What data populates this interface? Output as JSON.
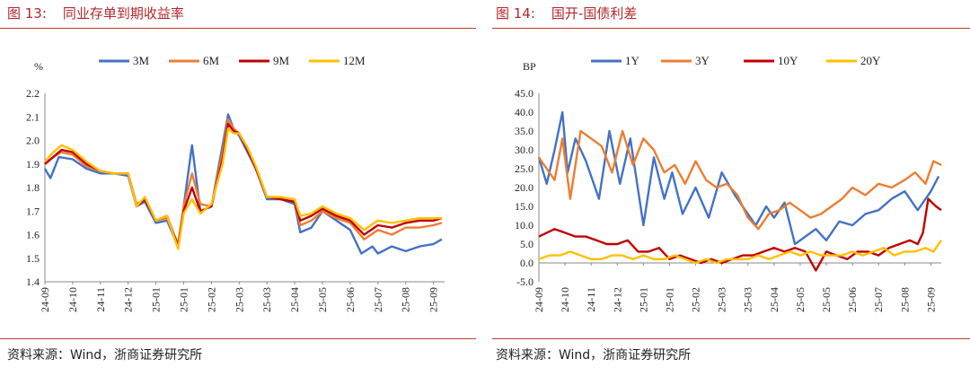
{
  "left": {
    "title": {
      "number": "图 13:",
      "text": "同业存单到期收益率"
    },
    "source": "资料来源：Wind，浙商证券研究所"
  },
  "right": {
    "title": {
      "number": "图 14:",
      "text": "国开-国债利差"
    },
    "source": "资料来源：Wind，浙商证券研究所"
  },
  "colors": {
    "title": "#b2272b",
    "rule": "#c0392b",
    "blue": "#4472c4",
    "orange": "#ed7d31",
    "red": "#c00000",
    "yellow": "#ffc000"
  },
  "chart_data": [
    {
      "type": "line",
      "title": "同业存单到期收益率",
      "ylabel": "%",
      "ylim": [
        1.4,
        2.2
      ],
      "yticks": [
        "1.4",
        "1.5",
        "1.6",
        "1.7",
        "1.8",
        "1.9",
        "2.0",
        "2.1",
        "2.2"
      ],
      "categories": [
        "24-09",
        "24-10",
        "24-11",
        "24-12",
        "25-01",
        "25-01",
        "25-02",
        "25-03",
        "25-03",
        "25-04",
        "25-05",
        "25-06",
        "25-07",
        "25-08",
        "25-09"
      ],
      "legend_position": "top",
      "series": [
        {
          "name": "3M",
          "color": "#4472c4",
          "x": [
            0,
            0.2,
            0.5,
            1,
            1.5,
            2,
            2.5,
            3,
            3.3,
            3.6,
            4,
            4.4,
            4.8,
            5,
            5.3,
            5.6,
            6,
            6.4,
            6.6,
            6.8,
            7,
            7.3,
            7.6,
            8,
            8.5,
            9,
            9.2,
            9.6,
            10,
            10.5,
            11,
            11.4,
            11.8,
            12,
            12.5,
            13,
            13.5,
            14,
            14.3
          ],
          "values": [
            1.88,
            1.84,
            1.93,
            1.92,
            1.88,
            1.86,
            1.86,
            1.85,
            1.72,
            1.74,
            1.65,
            1.66,
            1.55,
            1.72,
            1.98,
            1.7,
            1.72,
            1.98,
            2.11,
            2.05,
            2.02,
            1.95,
            1.88,
            1.75,
            1.75,
            1.73,
            1.61,
            1.63,
            1.7,
            1.66,
            1.62,
            1.52,
            1.55,
            1.52,
            1.55,
            1.53,
            1.55,
            1.56,
            1.58
          ]
        },
        {
          "name": "6M",
          "color": "#ed7d31",
          "x": [
            0,
            0.3,
            0.6,
            1,
            1.5,
            2,
            2.5,
            3,
            3.3,
            3.6,
            4,
            4.4,
            4.8,
            5,
            5.3,
            5.6,
            6,
            6.4,
            6.6,
            6.8,
            7,
            7.3,
            7.6,
            8,
            8.5,
            9,
            9.2,
            9.6,
            10,
            10.5,
            11,
            11.5,
            12,
            12.5,
            13,
            13.5,
            14,
            14.3
          ],
          "values": [
            1.9,
            1.93,
            1.95,
            1.94,
            1.89,
            1.87,
            1.86,
            1.86,
            1.73,
            1.75,
            1.66,
            1.67,
            1.56,
            1.72,
            1.86,
            1.73,
            1.72,
            1.95,
            2.09,
            2.05,
            2.03,
            1.96,
            1.88,
            1.76,
            1.75,
            1.74,
            1.64,
            1.66,
            1.7,
            1.67,
            1.65,
            1.58,
            1.62,
            1.6,
            1.63,
            1.63,
            1.64,
            1.65
          ]
        },
        {
          "name": "9M",
          "color": "#c00000",
          "x": [
            0,
            0.3,
            0.6,
            1,
            1.5,
            2,
            2.5,
            3,
            3.3,
            3.6,
            4,
            4.4,
            4.8,
            5,
            5.3,
            5.6,
            6,
            6.4,
            6.6,
            6.8,
            7,
            7.3,
            7.6,
            8,
            8.5,
            9,
            9.2,
            9.6,
            10,
            10.5,
            11,
            11.5,
            12,
            12.5,
            13,
            13.5,
            14,
            14.3
          ],
          "values": [
            1.9,
            1.93,
            1.96,
            1.95,
            1.9,
            1.87,
            1.86,
            1.86,
            1.72,
            1.75,
            1.66,
            1.68,
            1.55,
            1.7,
            1.8,
            1.7,
            1.72,
            1.92,
            2.07,
            2.04,
            2.03,
            1.96,
            1.88,
            1.76,
            1.75,
            1.74,
            1.66,
            1.68,
            1.71,
            1.68,
            1.66,
            1.6,
            1.64,
            1.63,
            1.65,
            1.66,
            1.66,
            1.67
          ]
        },
        {
          "name": "12M",
          "color": "#ffc000",
          "x": [
            0,
            0.3,
            0.6,
            1,
            1.5,
            2,
            2.5,
            3,
            3.3,
            3.6,
            4,
            4.4,
            4.8,
            5,
            5.3,
            5.6,
            6,
            6.4,
            6.6,
            6.8,
            7,
            7.3,
            7.6,
            8,
            8.5,
            9,
            9.2,
            9.6,
            10,
            10.5,
            11,
            11.5,
            12,
            12.5,
            13,
            13.5,
            14,
            14.3
          ],
          "values": [
            1.91,
            1.95,
            1.98,
            1.96,
            1.91,
            1.87,
            1.86,
            1.86,
            1.72,
            1.76,
            1.66,
            1.68,
            1.54,
            1.69,
            1.75,
            1.69,
            1.73,
            1.9,
            2.05,
            2.03,
            2.03,
            1.97,
            1.89,
            1.76,
            1.76,
            1.75,
            1.68,
            1.69,
            1.72,
            1.69,
            1.67,
            1.62,
            1.66,
            1.65,
            1.66,
            1.67,
            1.67,
            1.67
          ]
        }
      ]
    },
    {
      "type": "line",
      "title": "国开-国债利差",
      "ylabel": "BP",
      "ylim": [
        -5,
        45
      ],
      "yticks": [
        "-5.0",
        "0.0",
        "5.0",
        "10.0",
        "15.0",
        "20.0",
        "25.0",
        "30.0",
        "35.0",
        "40.0",
        "45.0"
      ],
      "categories": [
        "24-09",
        "24-10",
        "24-11",
        "24-12",
        "25-01",
        "25-01",
        "25-02",
        "25-03",
        "25-03",
        "25-04",
        "25-05",
        "25-05",
        "25-06",
        "25-07",
        "25-08",
        "25-09"
      ],
      "legend_position": "top",
      "series": [
        {
          "name": "1Y",
          "color": "#4472c4",
          "x": [
            0,
            0.3,
            0.6,
            0.9,
            1.1,
            1.4,
            1.8,
            2.3,
            2.7,
            3.1,
            3.5,
            4.0,
            4.4,
            4.8,
            5.1,
            5.5,
            6.0,
            6.5,
            7.0,
            7.5,
            8.0,
            8.3,
            8.7,
            9.0,
            9.4,
            9.8,
            10.2,
            10.6,
            11.0,
            11.5,
            12.0,
            12.5,
            13.0,
            13.5,
            14.0,
            14.5,
            15.0,
            15.3
          ],
          "values": [
            28,
            21,
            30,
            40,
            24,
            33,
            27,
            17,
            35,
            21,
            33,
            10,
            28,
            17,
            24,
            13,
            20,
            12,
            24,
            18,
            13,
            10,
            15,
            12,
            16,
            5,
            7,
            9,
            6,
            11,
            10,
            13,
            14,
            17,
            19,
            14,
            19,
            23
          ]
        },
        {
          "name": "3Y",
          "color": "#ed7d31",
          "x": [
            0,
            0.3,
            0.6,
            0.9,
            1.2,
            1.6,
            2.0,
            2.4,
            2.8,
            3.2,
            3.6,
            4.0,
            4.4,
            4.8,
            5.2,
            5.6,
            6.0,
            6.4,
            6.8,
            7.2,
            7.6,
            8.0,
            8.4,
            8.8,
            9.2,
            9.6,
            10.0,
            10.4,
            10.8,
            11.2,
            11.6,
            12.0,
            12.5,
            13.0,
            13.5,
            14.0,
            14.4,
            14.8,
            15.1,
            15.4
          ],
          "values": [
            28,
            25,
            22,
            33,
            17,
            35,
            33,
            31,
            24,
            35,
            26,
            33,
            30,
            24,
            26,
            21,
            27,
            22,
            20,
            21,
            18,
            12,
            9,
            13,
            14,
            16,
            14,
            12,
            13,
            15,
            17,
            20,
            18,
            21,
            20,
            22,
            24,
            21,
            27,
            26
          ]
        },
        {
          "name": "10Y",
          "color": "#c00000",
          "x": [
            0,
            0.3,
            0.6,
            1.0,
            1.4,
            1.8,
            2.2,
            2.6,
            3.0,
            3.4,
            3.8,
            4.2,
            4.6,
            5.0,
            5.4,
            5.8,
            6.2,
            6.6,
            7.0,
            7.4,
            7.8,
            8.2,
            8.6,
            9.0,
            9.4,
            9.8,
            10.2,
            10.6,
            11.0,
            11.4,
            11.8,
            12.2,
            12.6,
            13.0,
            13.4,
            13.8,
            14.2,
            14.5,
            14.7,
            14.9,
            15.2,
            15.4
          ],
          "values": [
            7,
            8,
            9,
            8,
            7,
            7,
            6,
            5,
            5,
            6,
            3,
            3,
            4,
            1,
            2,
            1,
            0,
            1,
            0,
            1,
            2,
            2,
            3,
            4,
            3,
            4,
            3,
            -2,
            3,
            2,
            1,
            3,
            3,
            2,
            4,
            5,
            6,
            5,
            8,
            17,
            15,
            14
          ]
        },
        {
          "name": "20Y",
          "color": "#ffc000",
          "x": [
            0,
            0.4,
            0.8,
            1.2,
            1.6,
            2.0,
            2.4,
            2.8,
            3.2,
            3.6,
            4.0,
            4.4,
            4.8,
            5.2,
            5.6,
            6.0,
            6.4,
            6.8,
            7.2,
            7.6,
            8.0,
            8.4,
            8.8,
            9.2,
            9.6,
            10.0,
            10.4,
            10.8,
            11.2,
            11.6,
            12.0,
            12.4,
            12.8,
            13.2,
            13.6,
            14.0,
            14.4,
            14.8,
            15.1,
            15.4
          ],
          "values": [
            1,
            2,
            2,
            3,
            2,
            1,
            1,
            2,
            2,
            1,
            2,
            1,
            1,
            2,
            1,
            0,
            1,
            0,
            1,
            1,
            1,
            2,
            1,
            2,
            3,
            2,
            3,
            2,
            2,
            2,
            3,
            2,
            3,
            4,
            2,
            3,
            3,
            4,
            3,
            6
          ]
        }
      ]
    }
  ]
}
